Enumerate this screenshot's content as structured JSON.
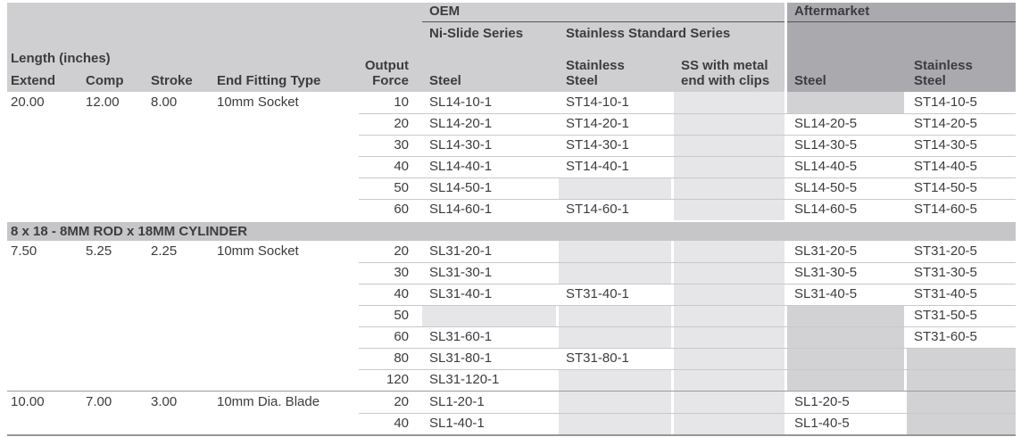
{
  "header": {
    "oem": "OEM",
    "aftermarket": "Aftermarket",
    "ni_slide_series": "Ni-Slide Series",
    "stainless_standard_series": "Stainless Standard Series",
    "length_group": "Length (inches)",
    "extend": "Extend",
    "comp": "Comp",
    "stroke": "Stroke",
    "end_fitting_type": "End Fitting Type",
    "output_force_line1": "Output",
    "output_force_line2": "Force",
    "oem_steel": "Steel",
    "oem_stainless_line1": "Stainless",
    "oem_stainless_line2": "Steel",
    "clips_line1": "SS with metal",
    "clips_line2": "end with clips",
    "am_steel": "Steel",
    "am_stainless_line1": "Stainless",
    "am_stainless_line2": "Steel"
  },
  "colors": {
    "header_bg": "#cfcfd1",
    "aftermarket_header_bg": "#aaaaae",
    "section_band_bg": "#c6c6c8",
    "empty_oem_cell_bg": "#e6e6e8",
    "empty_aftermarket_cell_bg": "#d2d2d4",
    "text": "#3c3c3f"
  },
  "sections": [
    {
      "band": "",
      "groups": [
        {
          "extend": "20.00",
          "comp": "12.00",
          "stroke": "8.00",
          "fitting": "10mm Socket",
          "rows": [
            {
              "force": "10",
              "oem_steel": "SL14-10-1",
              "oem_ss": "ST14-10-1",
              "clips": "",
              "am_steel": "",
              "am_ss": "ST14-10-5"
            },
            {
              "force": "20",
              "oem_steel": "SL14-20-1",
              "oem_ss": "ST14-20-1",
              "clips": "",
              "am_steel": "SL14-20-5",
              "am_ss": "ST14-20-5"
            },
            {
              "force": "30",
              "oem_steel": "SL14-30-1",
              "oem_ss": "ST14-30-1",
              "clips": "",
              "am_steel": "SL14-30-5",
              "am_ss": "ST14-30-5"
            },
            {
              "force": "40",
              "oem_steel": "SL14-40-1",
              "oem_ss": "ST14-40-1",
              "clips": "",
              "am_steel": "SL14-40-5",
              "am_ss": "ST14-40-5"
            },
            {
              "force": "50",
              "oem_steel": "SL14-50-1",
              "oem_ss": "",
              "clips": "",
              "am_steel": "SL14-50-5",
              "am_ss": "ST14-50-5"
            },
            {
              "force": "60",
              "oem_steel": "SL14-60-1",
              "oem_ss": "ST14-60-1",
              "clips": "",
              "am_steel": "SL14-60-5",
              "am_ss": "ST14-60-5"
            }
          ]
        }
      ]
    },
    {
      "band": "8 x 18 - 8MM ROD x 18MM CYLINDER",
      "groups": [
        {
          "extend": "7.50",
          "comp": "5.25",
          "stroke": "2.25",
          "fitting": "10mm Socket",
          "rows": [
            {
              "force": "20",
              "oem_steel": "SL31-20-1",
              "oem_ss": "",
              "clips": "",
              "am_steel": "SL31-20-5",
              "am_ss": "ST31-20-5"
            },
            {
              "force": "30",
              "oem_steel": "SL31-30-1",
              "oem_ss": "",
              "clips": "",
              "am_steel": "SL31-30-5",
              "am_ss": "ST31-30-5"
            },
            {
              "force": "40",
              "oem_steel": "SL31-40-1",
              "oem_ss": "ST31-40-1",
              "clips": "",
              "am_steel": "SL31-40-5",
              "am_ss": "ST31-40-5"
            },
            {
              "force": "50",
              "oem_steel": "",
              "oem_ss": "",
              "clips": "",
              "am_steel": "",
              "am_ss": "ST31-50-5"
            },
            {
              "force": "60",
              "oem_steel": "SL31-60-1",
              "oem_ss": "",
              "clips": "",
              "am_steel": "",
              "am_ss": "ST31-60-5"
            },
            {
              "force": "80",
              "oem_steel": "SL31-80-1",
              "oem_ss": "ST31-80-1",
              "clips": "",
              "am_steel": "",
              "am_ss": ""
            },
            {
              "force": "120",
              "oem_steel": "SL31-120-1",
              "oem_ss": "",
              "clips": "",
              "am_steel": "",
              "am_ss": ""
            }
          ]
        },
        {
          "extend": "10.00",
          "comp": "7.00",
          "stroke": "3.00",
          "fitting": "10mm Dia. Blade",
          "rows": [
            {
              "force": "20",
              "oem_steel": "SL1-20-1",
              "oem_ss": "",
              "clips": "",
              "am_steel": "SL1-20-5",
              "am_ss": ""
            },
            {
              "force": "40",
              "oem_steel": "SL1-40-1",
              "oem_ss": "",
              "clips": "",
              "am_steel": "SL1-40-5",
              "am_ss": ""
            }
          ]
        }
      ]
    }
  ]
}
